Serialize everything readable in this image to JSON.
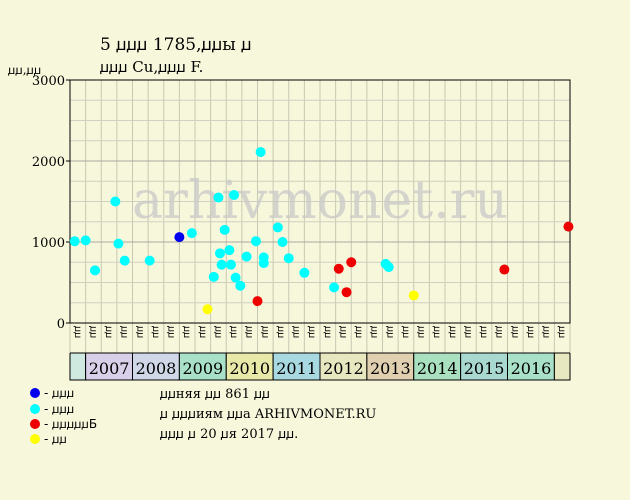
{
  "header": {
    "title_line1": "5 ꙡꙡꙡ 1785,ꙡꙡы ꙡ",
    "title_line2": "ꙡꙡꙡ Cu,ꙡꙡꙡ F.",
    "ylabel": "ꙡꙡ,ꙡꙡ"
  },
  "watermark": "arhivmonet.ru",
  "legend": [
    {
      "label": "- ꙡꙡꙡ",
      "color": "#0000ee"
    },
    {
      "label": "- ꙡꙡꙡ",
      "color": "#00ffff"
    },
    {
      "label": "- ꙡꙡꙡꙡꙡБ",
      "color": "#ee0000"
    },
    {
      "label": "- ꙡꙡ",
      "color": "#ffff00"
    }
  ],
  "info": [
    "ꙡꙡняя ꙡꙡ 861 ꙡꙡ",
    "ꙡ ꙡꙡꙡиям ꙡꙡа ARHIVMONET.RU",
    "ꙡꙡꙡ ꙡ 20 ꙡя 2017 ꙡꙡ."
  ],
  "chart_data": {
    "type": "scatter",
    "ylim": [
      0,
      3000
    ],
    "y_ticks": [
      "0",
      "1000",
      "2000",
      "3000"
    ],
    "grid": true,
    "x_labels": [
      "ꙡꙡ",
      "ꙡꙡ",
      "ꙡꙡ",
      "ꙡꙡ",
      "ꙡꙡ",
      "ꙡꙡ",
      "ꙡꙡ",
      "ꙡꙡ",
      "ꙡꙡ",
      "ꙡꙡ",
      "ꙡꙡ",
      "ꙡꙡ",
      "ꙡꙡ",
      "ꙡꙡ",
      "ꙡꙡ",
      "ꙡꙡ",
      "ꙡꙡ",
      "ꙡꙡ",
      "ꙡꙡ",
      "ꙡꙡ",
      "ꙡꙡ",
      "ꙡꙡ",
      "ꙡꙡ",
      "ꙡꙡ",
      "ꙡꙡ",
      "ꙡꙡ",
      "ꙡꙡ",
      "ꙡꙡ",
      "ꙡꙡ",
      "ꙡꙡ",
      "ꙡꙡ",
      "ꙡꙡ"
    ],
    "year_bands": [
      {
        "year": "",
        "start": 0,
        "end": 1,
        "color": "#cfe8e0"
      },
      {
        "year": "2007",
        "start": 1,
        "end": 4,
        "color": "#d8d0e8"
      },
      {
        "year": "2008",
        "start": 4,
        "end": 7,
        "color": "#d0d8e8"
      },
      {
        "year": "2009",
        "start": 7,
        "end": 10,
        "color": "#a8e0c8"
      },
      {
        "year": "2010",
        "start": 10,
        "end": 13,
        "color": "#e8e8a8"
      },
      {
        "year": "2011",
        "start": 13,
        "end": 16,
        "color": "#a8d8e0"
      },
      {
        "year": "2012",
        "start": 16,
        "end": 19,
        "color": "#e8e8c0"
      },
      {
        "year": "2013",
        "start": 19,
        "end": 22,
        "color": "#e0d0b0"
      },
      {
        "year": "2014",
        "start": 22,
        "end": 25,
        "color": "#a8e0c0"
      },
      {
        "year": "2015",
        "start": 25,
        "end": 28,
        "color": "#a8d8d0"
      },
      {
        "year": "2016",
        "start": 28,
        "end": 31,
        "color": "#a8e0c8"
      },
      {
        "year": "",
        "start": 31,
        "end": 32,
        "color": "#e8e8c0"
      }
    ],
    "series": [
      {
        "color": "#0000ee",
        "points": [
          [
            7.0,
            1060
          ]
        ]
      },
      {
        "color": "#00ffff",
        "points": [
          [
            0.3,
            1010
          ],
          [
            1.0,
            1020
          ],
          [
            1.6,
            650
          ],
          [
            2.9,
            1500
          ],
          [
            3.1,
            980
          ],
          [
            3.5,
            770
          ],
          [
            5.1,
            770
          ],
          [
            7.8,
            1110
          ],
          [
            9.2,
            570
          ],
          [
            9.5,
            1550
          ],
          [
            9.6,
            860
          ],
          [
            9.7,
            720
          ],
          [
            9.9,
            1150
          ],
          [
            10.2,
            900
          ],
          [
            10.3,
            720
          ],
          [
            10.5,
            1580
          ],
          [
            10.6,
            560
          ],
          [
            10.9,
            460
          ],
          [
            11.3,
            820
          ],
          [
            11.9,
            1010
          ],
          [
            12.2,
            2110
          ],
          [
            12.4,
            810
          ],
          [
            12.4,
            740
          ],
          [
            13.3,
            1180
          ],
          [
            13.6,
            1000
          ],
          [
            14.0,
            800
          ],
          [
            15.0,
            620
          ],
          [
            16.9,
            440
          ],
          [
            20.2,
            730
          ],
          [
            20.4,
            690
          ]
        ]
      },
      {
        "color": "#ee0000",
        "points": [
          [
            12.0,
            270
          ],
          [
            17.2,
            670
          ],
          [
            17.7,
            380
          ],
          [
            18.0,
            750
          ],
          [
            27.8,
            660
          ],
          [
            31.9,
            1190
          ]
        ]
      },
      {
        "color": "#ffff00",
        "points": [
          [
            8.8,
            170
          ],
          [
            22.0,
            340
          ]
        ]
      }
    ]
  }
}
